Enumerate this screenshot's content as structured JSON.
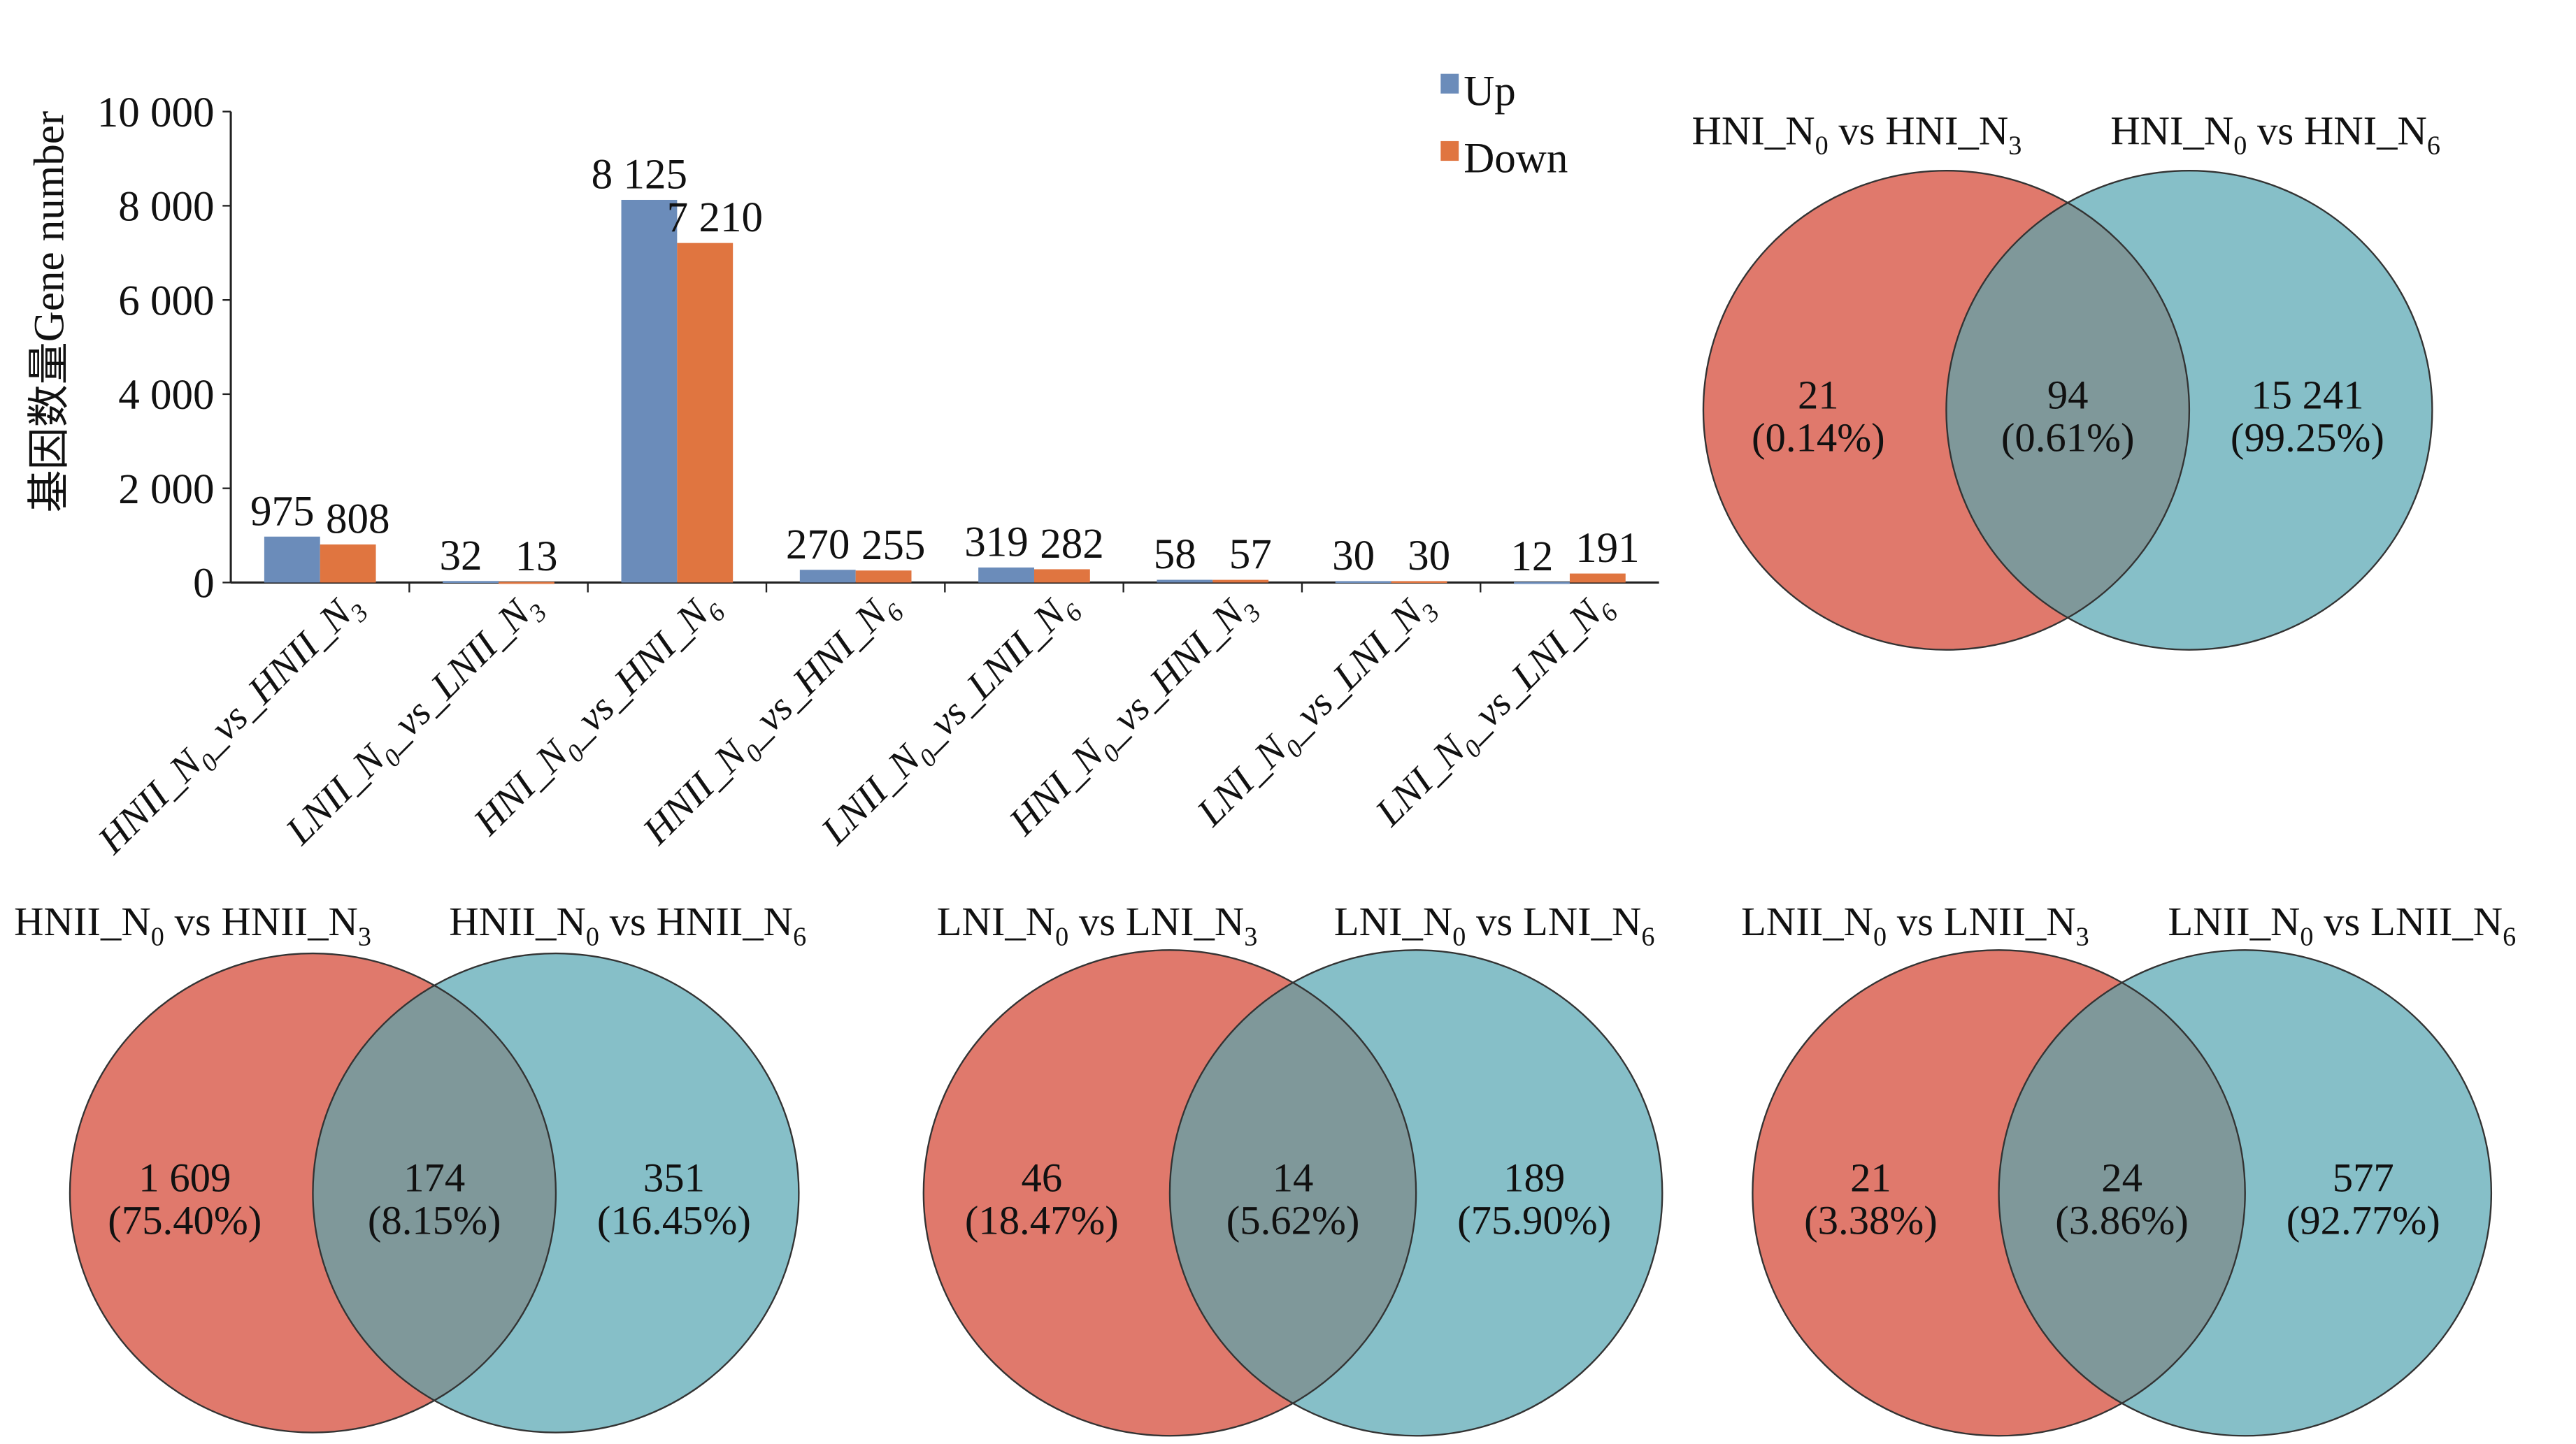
{
  "chart_data": [
    {
      "type": "bar",
      "ylabel": "基因数量Gene number",
      "ylim": [
        0,
        10000
      ],
      "yticks": [
        0,
        2000,
        4000,
        6000,
        8000,
        10000
      ],
      "ytick_labels": [
        "0",
        "2 000",
        "4 000",
        "6 000",
        "8 000",
        "10 000"
      ],
      "legend_position": "top-right",
      "categories": [
        {
          "p1": "HNII_N",
          "s1": "0",
          "p2": "_vs_HNII_N",
          "s2": "3"
        },
        {
          "p1": "LNII_N",
          "s1": "0",
          "p2": "_vs_LNII_N",
          "s2": "3"
        },
        {
          "p1": "HNI_N",
          "s1": "0",
          "p2": "_vs_HNI_N",
          "s2": "6"
        },
        {
          "p1": "HNII_N",
          "s1": "0",
          "p2": "_vs_HNI_N",
          "s2": "6"
        },
        {
          "p1": "LNII_N",
          "s1": "0",
          "p2": "_vs_LNII_N",
          "s2": "6"
        },
        {
          "p1": "HNI_N",
          "s1": "0",
          "p2": "_vs_HNI_N",
          "s2": "3"
        },
        {
          "p1": "LNI_N",
          "s1": "0",
          "p2": "_vs_LNI_N",
          "s2": "3"
        },
        {
          "p1": "LNI_N",
          "s1": "0",
          "p2": "_vs_LNI_N",
          "s2": "6"
        }
      ],
      "series": [
        {
          "name": "Up",
          "color": "#6b8cba",
          "values": [
            975,
            32,
            8125,
            270,
            319,
            58,
            30,
            12
          ],
          "labels": [
            "975",
            "32",
            "8 125",
            "270",
            "319",
            "58",
            "30",
            "12"
          ]
        },
        {
          "name": "Down",
          "color": "#e07540",
          "values": [
            808,
            13,
            7210,
            255,
            282,
            57,
            30,
            191
          ],
          "labels": [
            "808",
            "13",
            "7 210",
            "255",
            "282",
            "57",
            "30",
            "191"
          ]
        }
      ]
    },
    {
      "type": "venn",
      "sets": [
        {
          "p1": "HNI_N",
          "s1": "0",
          "p2": " vs HNI_N",
          "s2": "3"
        },
        {
          "p1": "HNI_N",
          "s1": "0",
          "p2": " vs HNI_N",
          "s2": "6"
        }
      ],
      "regions": [
        {
          "count": "21",
          "pct": "(0.14%)"
        },
        {
          "count": "94",
          "pct": "(0.61%)"
        },
        {
          "count": "15 241",
          "pct": "(99.25%)"
        }
      ]
    },
    {
      "type": "venn",
      "sets": [
        {
          "p1": "HNII_N",
          "s1": "0",
          "p2": " vs HNII_N",
          "s2": "3"
        },
        {
          "p1": "HNII_N",
          "s1": "0",
          "p2": " vs HNII_N",
          "s2": "6"
        }
      ],
      "regions": [
        {
          "count": "1 609",
          "pct": "(75.40%)"
        },
        {
          "count": "174",
          "pct": "(8.15%)"
        },
        {
          "count": "351",
          "pct": "(16.45%)"
        }
      ]
    },
    {
      "type": "venn",
      "sets": [
        {
          "p1": "LNI_N",
          "s1": "0",
          "p2": " vs LNI_N",
          "s2": "3"
        },
        {
          "p1": "LNI_N",
          "s1": "0",
          "p2": " vs LNI_N",
          "s2": "6"
        }
      ],
      "regions": [
        {
          "count": "46",
          "pct": "(18.47%)"
        },
        {
          "count": "14",
          "pct": "(5.62%)"
        },
        {
          "count": "189",
          "pct": "(75.90%)"
        }
      ]
    },
    {
      "type": "venn",
      "sets": [
        {
          "p1": "LNII_N",
          "s1": "0",
          "p2": " vs LNII_N",
          "s2": "3"
        },
        {
          "p1": "LNII_N",
          "s1": "0",
          "p2": " vs LNII_N",
          "s2": "6"
        }
      ],
      "regions": [
        {
          "count": "21",
          "pct": "(3.38%)"
        },
        {
          "count": "24",
          "pct": "(3.86%)"
        },
        {
          "count": "577",
          "pct": "(92.77%)"
        }
      ]
    }
  ],
  "venn_colors": {
    "left": "#e0796c",
    "right": "#86bfc8",
    "overlap": "#7f989a"
  }
}
